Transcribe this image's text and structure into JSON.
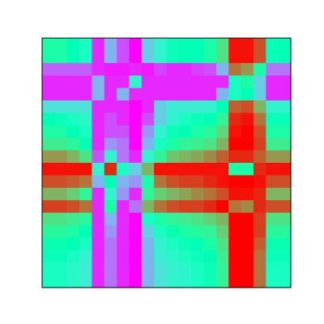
{
  "chart_data": {
    "type": "heatmap",
    "rows": 20,
    "cols": 20,
    "colormap": "rainbow",
    "value_range": [
      0,
      1
    ],
    "axes_visible": false,
    "grid": false,
    "legend": "none",
    "frame_color": "#000000",
    "values": [
      [
        0.55,
        0.55,
        0.5,
        0.45,
        0.05,
        0.25,
        0.1,
        0.0,
        0.3,
        0.4,
        0.48,
        0.5,
        0.5,
        0.55,
        0.65,
        0.98,
        0.98,
        0.9,
        0.48,
        0.5
      ],
      [
        0.55,
        0.55,
        0.5,
        0.45,
        0.05,
        0.25,
        0.1,
        0.0,
        0.3,
        0.4,
        0.48,
        0.5,
        0.5,
        0.55,
        0.65,
        0.98,
        0.98,
        0.9,
        0.48,
        0.5
      ],
      [
        0.12,
        0.12,
        0.12,
        0.12,
        0.05,
        0.03,
        0.03,
        0.05,
        0.03,
        0.08,
        0.05,
        0.05,
        0.08,
        0.1,
        0.25,
        0.85,
        0.8,
        0.55,
        0.15,
        0.15
      ],
      [
        0.05,
        0.05,
        0.05,
        0.05,
        0.25,
        0.05,
        0.05,
        0.4,
        0.05,
        0.05,
        0.05,
        0.05,
        0.05,
        0.05,
        0.05,
        0.45,
        0.55,
        0.3,
        0.05,
        0.05
      ],
      [
        0.05,
        0.05,
        0.05,
        0.05,
        0.25,
        0.05,
        0.25,
        0.05,
        0.05,
        0.05,
        0.05,
        0.05,
        0.05,
        0.05,
        0.25,
        0.45,
        0.5,
        0.3,
        0.05,
        0.05
      ],
      [
        0.35,
        0.35,
        0.35,
        0.35,
        0.05,
        0.05,
        0.05,
        0.0,
        0.05,
        0.3,
        0.38,
        0.38,
        0.38,
        0.4,
        0.5,
        0.88,
        0.9,
        0.75,
        0.4,
        0.4
      ],
      [
        0.5,
        0.48,
        0.45,
        0.42,
        0.05,
        0.1,
        0.05,
        0.0,
        0.1,
        0.3,
        0.4,
        0.45,
        0.48,
        0.5,
        0.6,
        0.95,
        0.98,
        0.85,
        0.48,
        0.48
      ],
      [
        0.55,
        0.55,
        0.5,
        0.45,
        0.05,
        0.1,
        0.1,
        0.0,
        0.2,
        0.4,
        0.48,
        0.5,
        0.55,
        0.58,
        0.68,
        0.98,
        1.0,
        0.9,
        0.55,
        0.55
      ],
      [
        0.62,
        0.62,
        0.58,
        0.5,
        0.05,
        0.2,
        0.15,
        0.0,
        0.25,
        0.45,
        0.55,
        0.6,
        0.62,
        0.65,
        0.75,
        1.0,
        1.0,
        0.92,
        0.62,
        0.62
      ],
      [
        0.8,
        0.8,
        0.75,
        0.65,
        0.1,
        0.4,
        0.15,
        0.05,
        0.4,
        0.6,
        0.72,
        0.75,
        0.78,
        0.82,
        0.88,
        0.95,
        0.95,
        0.88,
        0.8,
        0.8
      ],
      [
        0.98,
        0.98,
        0.98,
        0.98,
        0.4,
        0.95,
        0.45,
        0.3,
        0.75,
        0.98,
        0.98,
        0.98,
        0.98,
        0.98,
        0.98,
        0.55,
        0.55,
        0.95,
        0.98,
        0.98
      ],
      [
        0.9,
        0.9,
        0.88,
        0.85,
        0.25,
        0.5,
        0.25,
        0.2,
        0.55,
        0.85,
        0.9,
        0.92,
        0.92,
        0.95,
        0.98,
        1.0,
        1.0,
        0.98,
        0.9,
        0.9
      ],
      [
        0.75,
        0.75,
        0.7,
        0.6,
        0.05,
        0.4,
        0.2,
        0.05,
        0.6,
        0.7,
        0.75,
        0.78,
        0.82,
        0.85,
        0.9,
        0.98,
        0.98,
        0.95,
        0.75,
        0.75
      ],
      [
        0.92,
        0.92,
        0.9,
        0.85,
        0.05,
        0.55,
        0.05,
        0.15,
        0.75,
        0.85,
        0.9,
        0.92,
        0.92,
        0.95,
        1.0,
        0.85,
        0.82,
        0.95,
        0.9,
        0.9
      ],
      [
        0.65,
        0.65,
        0.62,
        0.58,
        0.05,
        0.25,
        0.05,
        0.0,
        0.45,
        0.55,
        0.6,
        0.62,
        0.65,
        0.7,
        0.75,
        1.0,
        1.0,
        0.92,
        0.65,
        0.65
      ],
      [
        0.58,
        0.58,
        0.55,
        0.5,
        0.05,
        0.2,
        0.05,
        0.0,
        0.3,
        0.45,
        0.52,
        0.55,
        0.58,
        0.6,
        0.7,
        1.0,
        1.0,
        0.92,
        0.58,
        0.58
      ],
      [
        0.52,
        0.52,
        0.5,
        0.45,
        0.05,
        0.15,
        0.05,
        0.0,
        0.25,
        0.4,
        0.45,
        0.48,
        0.5,
        0.55,
        0.65,
        1.0,
        1.0,
        0.88,
        0.52,
        0.52
      ],
      [
        0.48,
        0.48,
        0.45,
        0.4,
        0.05,
        0.15,
        0.05,
        0.0,
        0.25,
        0.38,
        0.42,
        0.45,
        0.48,
        0.5,
        0.62,
        1.0,
        1.0,
        0.85,
        0.48,
        0.48
      ],
      [
        0.45,
        0.45,
        0.42,
        0.38,
        0.05,
        0.15,
        0.05,
        0.0,
        0.25,
        0.35,
        0.4,
        0.42,
        0.45,
        0.48,
        0.6,
        1.0,
        1.0,
        0.85,
        0.45,
        0.45
      ],
      [
        0.45,
        0.45,
        0.42,
        0.38,
        0.05,
        0.15,
        0.05,
        0.0,
        0.25,
        0.35,
        0.4,
        0.42,
        0.45,
        0.48,
        0.6,
        1.0,
        1.0,
        0.85,
        0.45,
        0.45
      ]
    ]
  }
}
